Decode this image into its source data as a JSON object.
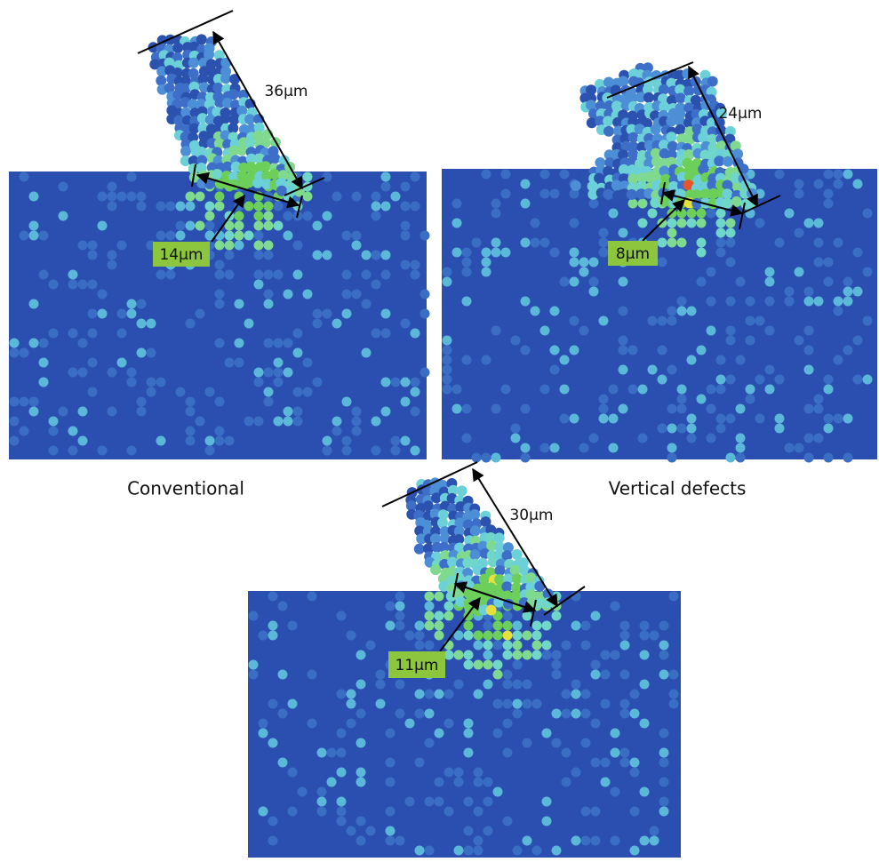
{
  "panels": [
    {
      "length_label": "36µm",
      "contact_label": "14µm",
      "caption": "Conventional"
    },
    {
      "length_label": "24µm",
      "contact_label": "8µm",
      "caption": "Vertical defects"
    },
    {
      "length_label": "30µm",
      "contact_label": "11µm"
    }
  ]
}
